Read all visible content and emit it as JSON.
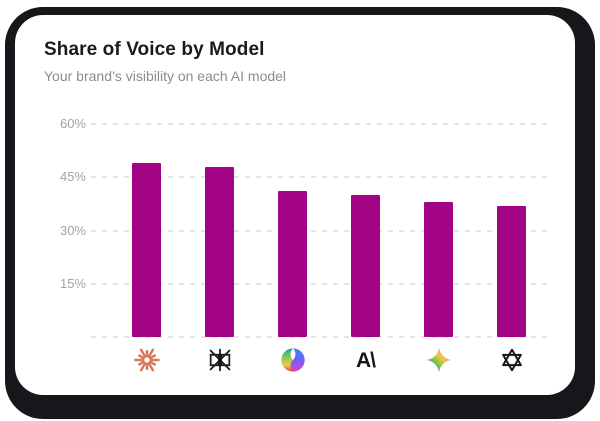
{
  "card": {
    "title": "Share of Voice by Model",
    "subtitle": "Your brand’s visibility on each AI model"
  },
  "chart_data": {
    "type": "bar",
    "title": "Share of Voice by Model",
    "subtitle": "Your brand’s visibility on each AI model",
    "categories": [
      "Claude",
      "Perplexity",
      "Copilot",
      "Anthropic",
      "Gemini",
      "ChatGPT"
    ],
    "values": [
      49,
      48,
      41,
      40,
      38,
      37
    ],
    "unit": "%",
    "xlabel": "",
    "ylabel": "",
    "ylim": [
      0,
      60
    ],
    "y_gridlines": [
      60,
      45,
      30,
      15,
      0
    ],
    "y_tick_labels": [
      "60%",
      "45%",
      "30%",
      "15%"
    ],
    "grid": "horizontal-dashed",
    "legend": "none",
    "bar_color": "#A30485",
    "icons": [
      "claude-icon",
      "perplexity-icon",
      "copilot-icon",
      "anthropic-icon",
      "gemini-icon",
      "openai-icon"
    ]
  },
  "icon_glyphs": {
    "anthropic": "A\\"
  },
  "colors": {
    "frame": "#17171b",
    "card_bg": "#ffffff",
    "title": "#1b1b1f",
    "subtitle": "#8b8b90",
    "tick": "#a2a3a8",
    "gridline": "#e5e5e8",
    "bar": "#A30485",
    "claude_orange": "#D97757",
    "mono_icon": "#17171b"
  }
}
